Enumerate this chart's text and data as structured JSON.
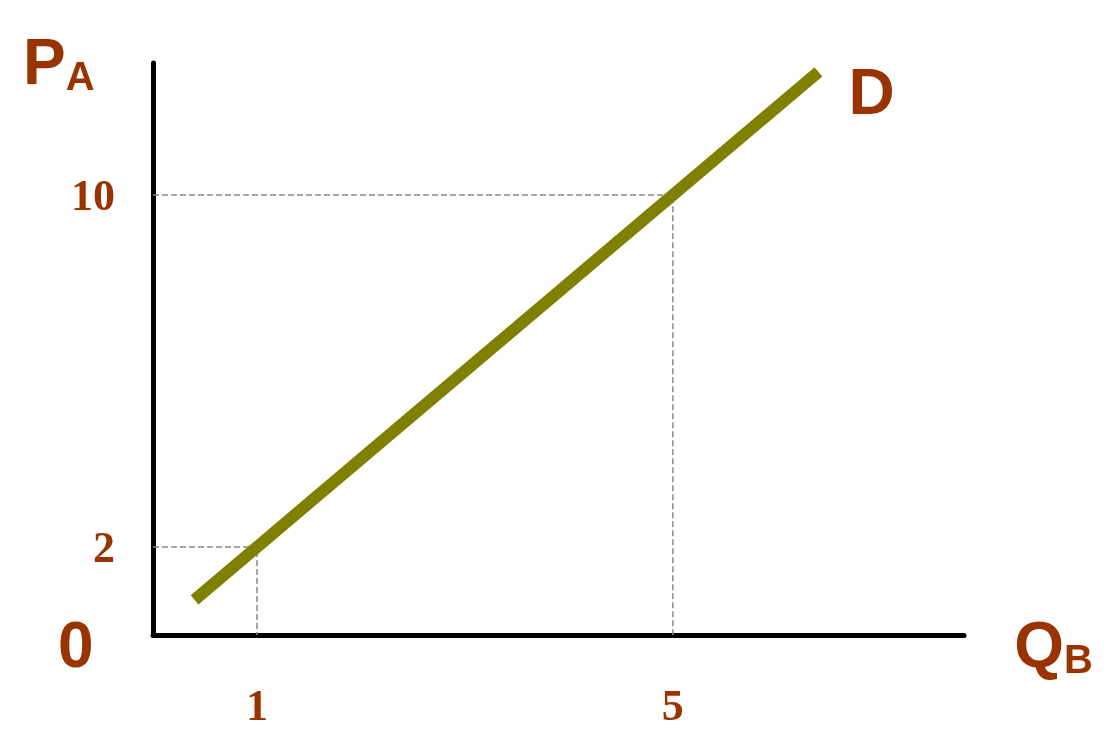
{
  "chart_data": {
    "type": "line",
    "xlabel": "Q$_{B}$",
    "ylabel": "P$_{A}$",
    "xlim": [
      0,
      7.8
    ],
    "ylim": [
      0,
      13
    ],
    "xticks": [
      1,
      5
    ],
    "yticks": [
      2,
      10
    ],
    "grid": false,
    "legend": false,
    "marker": "none",
    "annotations": [
      "0"
    ],
    "series": [
      {
        "name": "D",
        "color": "#808000",
        "x": [
          0.4,
          6.4
        ],
        "values": [
          0.8,
          12.8
        ],
        "line_style": "solid"
      },
      {
        "color": "#888888",
        "x": [
          0,
          1,
          1
        ],
        "values": [
          2,
          2,
          0
        ],
        "line_style": "dashed"
      },
      {
        "color": "#888888",
        "x": [
          0,
          5,
          5
        ],
        "values": [
          10,
          10,
          0
        ],
        "line_style": "dashed"
      }
    ]
  }
}
